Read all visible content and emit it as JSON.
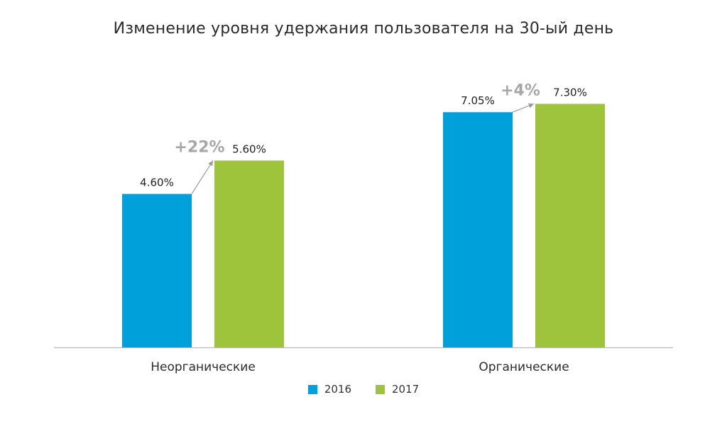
{
  "chart_data": {
    "type": "bar",
    "title": "Изменение уровня удержания пользователя на 30-ый день",
    "categories": [
      "Неорганические",
      "Органические"
    ],
    "series": [
      {
        "name": "2016",
        "color": "#00a0da",
        "values": [
          4.6,
          7.05
        ],
        "labels": [
          "4.60%",
          "7.05%"
        ]
      },
      {
        "name": "2017",
        "color": "#9dc43a",
        "values": [
          5.6,
          7.3
        ],
        "labels": [
          "5.60%",
          "7.30%"
        ]
      }
    ],
    "annotations": [
      "+22%",
      "+4%"
    ],
    "ylim": [
      0,
      8.5
    ],
    "grid": false,
    "legend_position": "bottom-center"
  }
}
